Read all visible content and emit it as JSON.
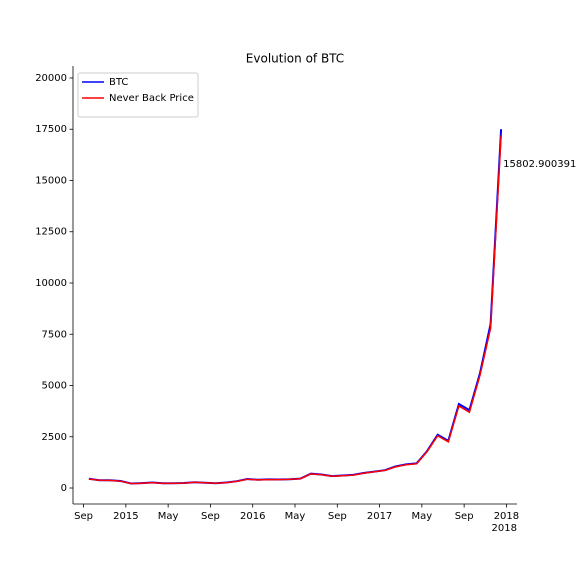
{
  "chart_data": {
    "type": "line",
    "title": "Evolution of BTC",
    "x": [
      "2014-09",
      "2014-10",
      "2014-11",
      "2014-12",
      "2015-01",
      "2015-02",
      "2015-03",
      "2015-04",
      "2015-05",
      "2015-06",
      "2015-07",
      "2015-08",
      "2015-09",
      "2015-10",
      "2015-11",
      "2015-12",
      "2016-01",
      "2016-02",
      "2016-03",
      "2016-04",
      "2016-05",
      "2016-06",
      "2016-07",
      "2016-08",
      "2016-09",
      "2016-10",
      "2016-11",
      "2016-12",
      "2017-01",
      "2017-02",
      "2017-03",
      "2017-04",
      "2017-05",
      "2017-06",
      "2017-07",
      "2017-08",
      "2017-09",
      "2017-10",
      "2017-11",
      "2017-12"
    ],
    "series": [
      {
        "name": "BTC",
        "color": "#0000ff",
        "values": [
          450,
          380,
          380,
          340,
          220,
          240,
          270,
          230,
          237,
          245,
          285,
          260,
          235,
          270,
          330,
          440,
          400,
          420,
          415,
          430,
          460,
          700,
          660,
          580,
          610,
          640,
          730,
          800,
          870,
          1050,
          1150,
          1200,
          1800,
          2600,
          2300,
          4100,
          3800,
          5600,
          8000,
          17500
        ]
      },
      {
        "name": "Never Back Price",
        "color": "#ff0000",
        "values": [
          440,
          375,
          370,
          330,
          215,
          235,
          265,
          225,
          232,
          240,
          280,
          255,
          230,
          265,
          320,
          430,
          395,
          410,
          410,
          425,
          455,
          690,
          650,
          575,
          600,
          630,
          720,
          790,
          860,
          1030,
          1130,
          1180,
          1780,
          2550,
          2250,
          4000,
          3700,
          5500,
          7800,
          17200
        ]
      }
    ],
    "xlim": [
      "2014-08",
      "2018-02"
    ],
    "xticks": [
      {
        "value": "2014-09",
        "label": "Sep"
      },
      {
        "value": "2015-01",
        "label": "2015"
      },
      {
        "value": "2015-05",
        "label": "May"
      },
      {
        "value": "2015-09",
        "label": "Sep"
      },
      {
        "value": "2016-01",
        "label": "2016"
      },
      {
        "value": "2016-05",
        "label": "May"
      },
      {
        "value": "2016-09",
        "label": "Sep"
      },
      {
        "value": "2017-01",
        "label": "2017"
      },
      {
        "value": "2017-05",
        "label": "May"
      },
      {
        "value": "2017-09",
        "label": "Sep"
      },
      {
        "value": "2018-01",
        "label": "2018"
      }
    ],
    "x_offset_label": "2018",
    "ylim": [
      -780,
      20585
    ],
    "yticks": [
      0,
      2500,
      5000,
      7500,
      10000,
      12500,
      15000,
      17500,
      20000
    ],
    "legend": "upper left",
    "annotation": {
      "text": "15802.900391",
      "x": "2017-12",
      "y": 15802.900391
    }
  }
}
